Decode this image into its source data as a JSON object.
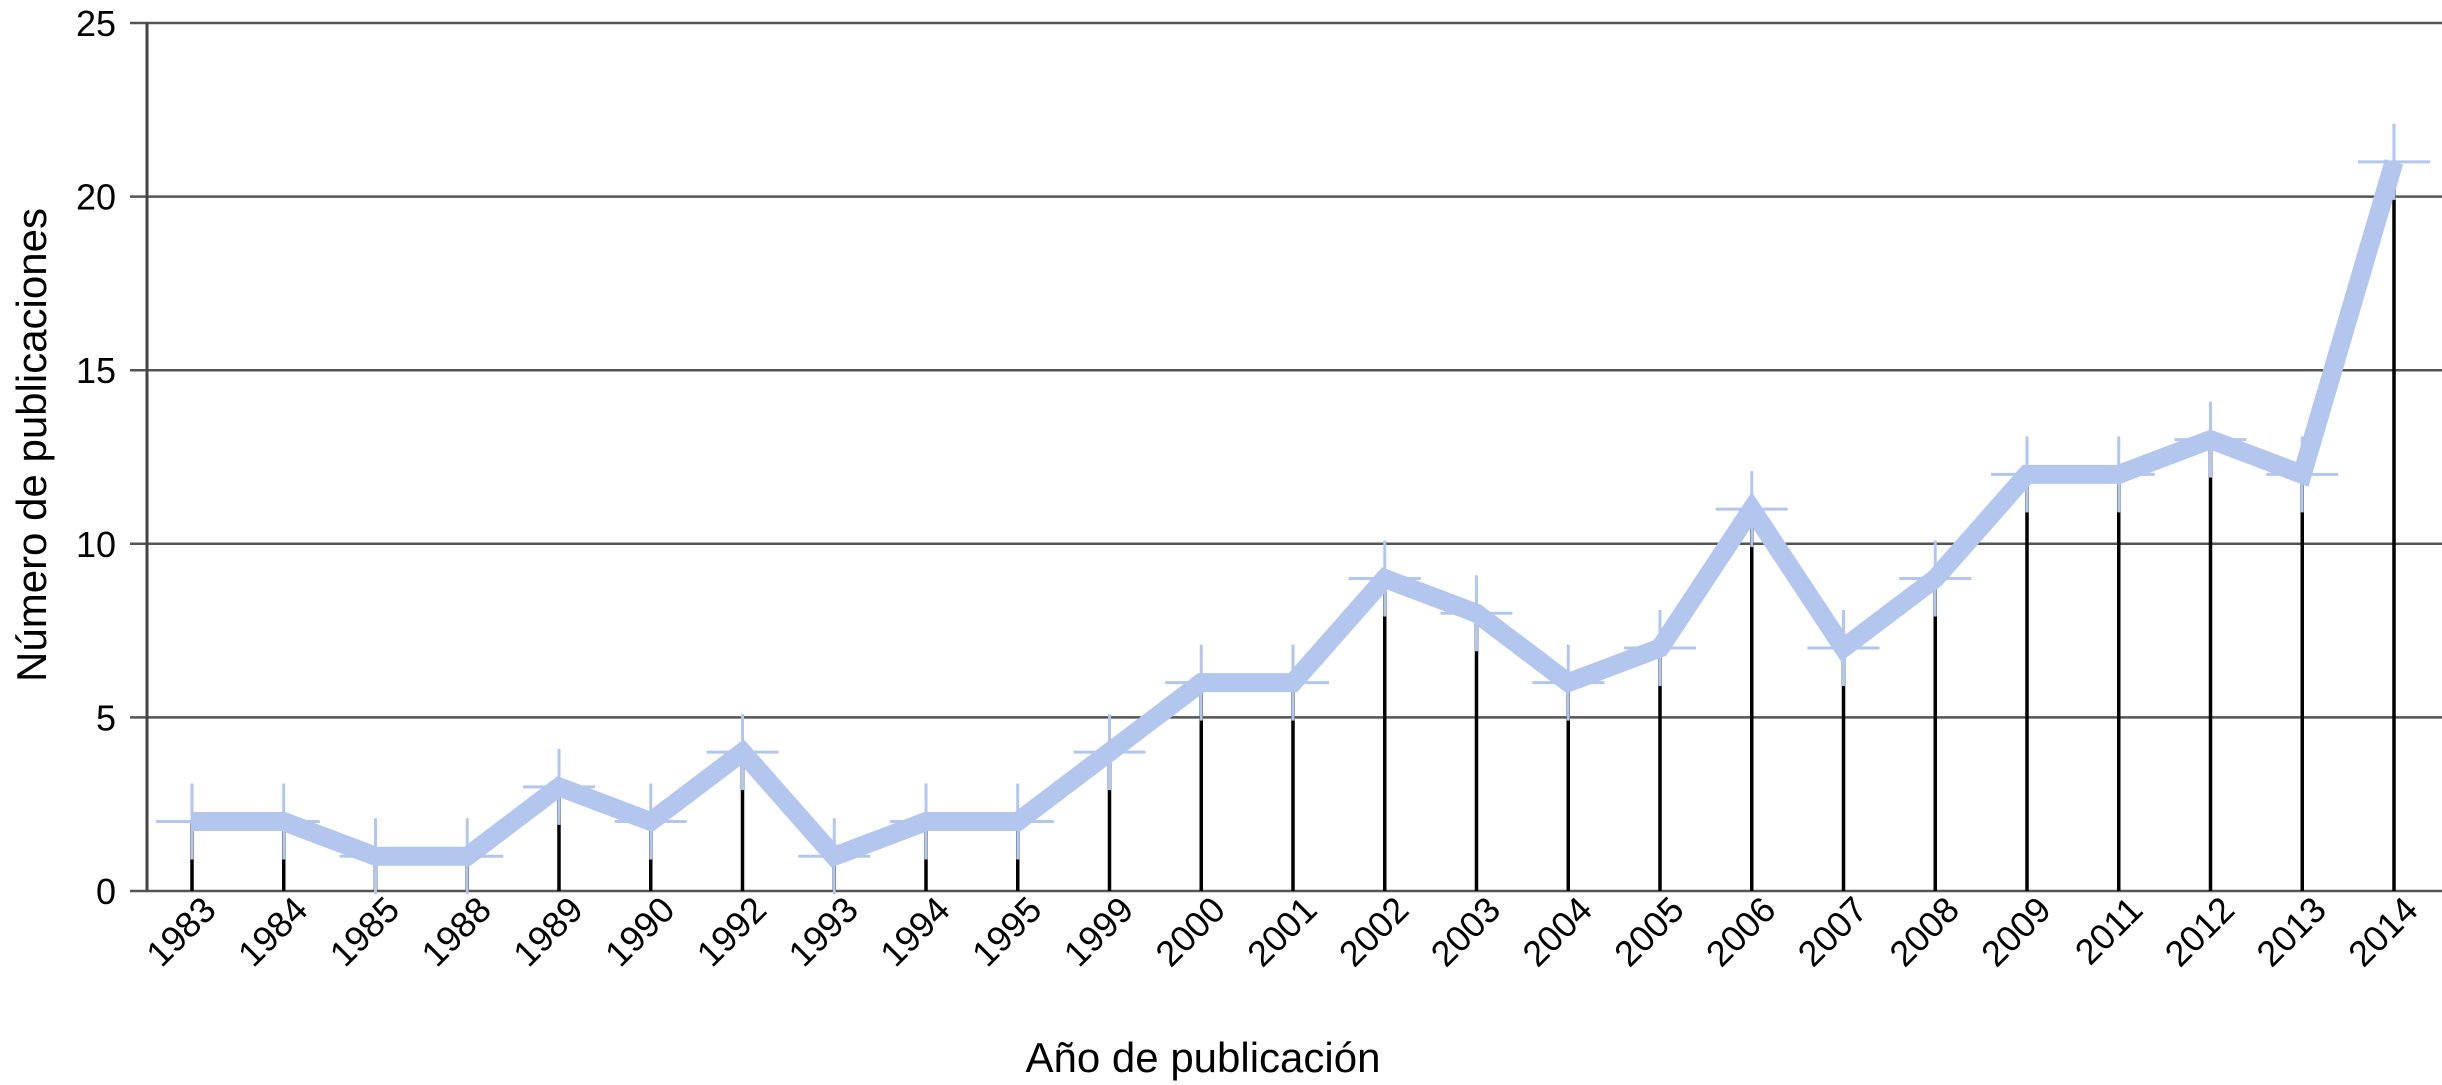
{
  "chart_data": {
    "type": "line",
    "title": "",
    "xlabel": "Año de publicación",
    "ylabel": "Número de publicaciones",
    "categories": [
      "1983",
      "1984",
      "1985",
      "1988",
      "1989",
      "1990",
      "1992",
      "1993",
      "1994",
      "1995",
      "1999",
      "2000",
      "2001",
      "2002",
      "2003",
      "2004",
      "2005",
      "2006",
      "2007",
      "2008",
      "2009",
      "2011",
      "2012",
      "2013",
      "2014"
    ],
    "series": [
      {
        "values": [
          2,
          2,
          1,
          1,
          3,
          2,
          4,
          1,
          2,
          2,
          4,
          6,
          6,
          9,
          8,
          6,
          7,
          11,
          7,
          9,
          12,
          12,
          13,
          12,
          21
        ]
      }
    ],
    "ylim": [
      0,
      25
    ],
    "yticks": [
      0,
      5,
      10,
      15,
      20,
      25
    ],
    "grid": true,
    "legend": "none",
    "stems": true,
    "colors": {
      "line": "#b3c7ee",
      "stems": "#000000",
      "grid": "#555555"
    }
  }
}
